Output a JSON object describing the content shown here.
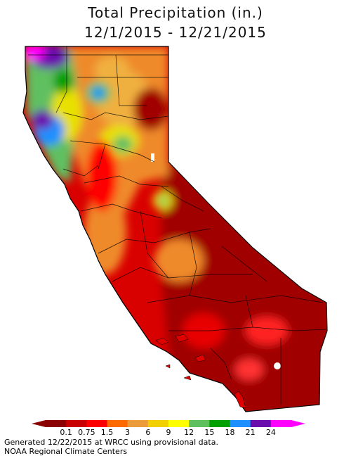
{
  "header": {
    "title": "Total Precipitation (in.)",
    "date_range": "12/1/2015 - 12/21/2015"
  },
  "legend": {
    "ticks": [
      "0.1",
      "0.75",
      "1.5",
      "3",
      "6",
      "9",
      "12",
      "15",
      "18",
      "21",
      "24"
    ],
    "colors": [
      "#8b0000",
      "#c80000",
      "#ff0000",
      "#ff6a00",
      "#ec9b3b",
      "#f2d000",
      "#ffff00",
      "#60c060",
      "#00a000",
      "#1e90ff",
      "#6a0dad",
      "#ff00ff"
    ]
  },
  "footer": {
    "generated": "Generated 12/22/2015 at WRCC using provisional data.",
    "source": "NOAA Regional Climate Centers"
  }
}
